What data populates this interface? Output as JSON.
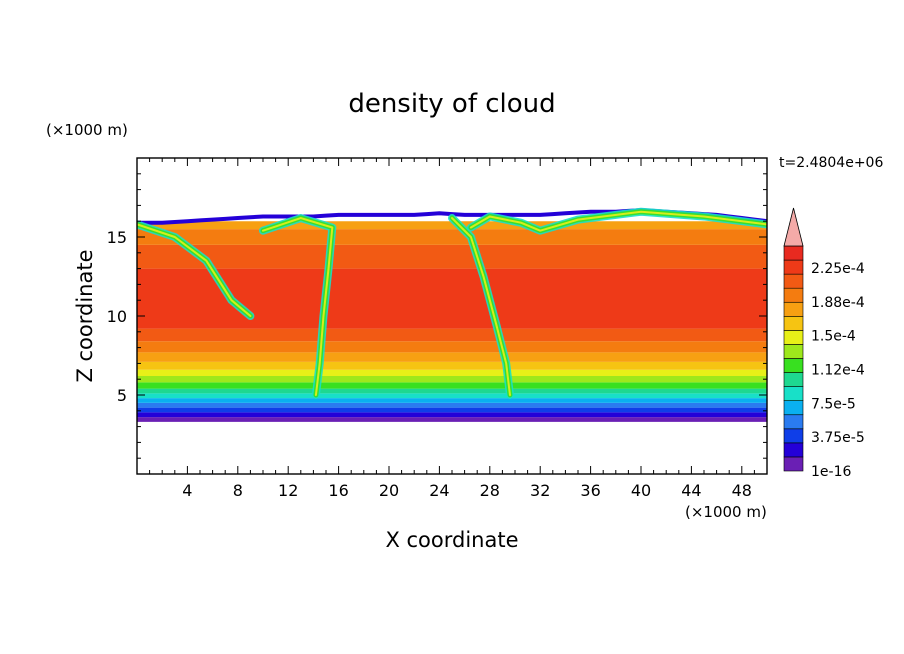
{
  "chart_data": {
    "type": "heatmap",
    "title": "density of cloud",
    "xlabel": "X coordinate",
    "ylabel": "Z coordinate",
    "x_unit": "(×1000 m)",
    "y_unit": "(×1000 m)",
    "time_label": "t=2.4804e+06",
    "xlim": [
      0,
      50
    ],
    "ylim": [
      0,
      20
    ],
    "x_ticks": [
      4,
      8,
      12,
      16,
      20,
      24,
      28,
      32,
      36,
      40,
      44,
      48
    ],
    "y_ticks": [
      5,
      10,
      15
    ],
    "colorbar": {
      "labels": [
        "2.25e-4",
        "1.88e-4",
        "1.5e-4",
        "1.12e-4",
        "7.5e-5",
        "3.75e-5",
        "1e-16"
      ],
      "colors": [
        "#6a1fb4",
        "#2400d8",
        "#0f3ee8",
        "#2a7bf0",
        "#0ab0f0",
        "#18e0c8",
        "#1ed890",
        "#38e020",
        "#9ee81c",
        "#e8f018",
        "#f6c412",
        "#f7a012",
        "#f47c10",
        "#f25a14",
        "#ee3a18",
        "#e82a20"
      ],
      "extend_color": "#f4aaa8"
    },
    "layers": [
      {
        "range_km": [
          3.3,
          3.6
        ],
        "color": "#6a1fb4"
      },
      {
        "range_km": [
          3.6,
          3.9
        ],
        "color": "#2400d8"
      },
      {
        "range_km": [
          3.9,
          4.2
        ],
        "color": "#0f3ee8"
      },
      {
        "range_km": [
          4.2,
          4.5
        ],
        "color": "#2a7bf0"
      },
      {
        "range_km": [
          4.5,
          4.8
        ],
        "color": "#0ab0f0"
      },
      {
        "range_km": [
          4.8,
          5.1
        ],
        "color": "#18e0c8"
      },
      {
        "range_km": [
          5.1,
          5.4
        ],
        "color": "#1ed890"
      },
      {
        "range_km": [
          5.4,
          5.8
        ],
        "color": "#38e020"
      },
      {
        "range_km": [
          5.8,
          6.2
        ],
        "color": "#9ee81c"
      },
      {
        "range_km": [
          6.2,
          6.6
        ],
        "color": "#e8f018"
      },
      {
        "range_km": [
          6.6,
          7.1
        ],
        "color": "#f6c412"
      },
      {
        "range_km": [
          7.1,
          7.7
        ],
        "color": "#f7a012"
      },
      {
        "range_km": [
          7.7,
          8.4
        ],
        "color": "#f47c10"
      },
      {
        "range_km": [
          8.4,
          9.2
        ],
        "color": "#f25a14"
      },
      {
        "range_km": [
          9.2,
          13.0
        ],
        "color": "#ee3a18"
      },
      {
        "range_km": [
          13.0,
          14.5
        ],
        "color": "#f25a14"
      },
      {
        "range_km": [
          14.5,
          15.5
        ],
        "color": "#f47c10"
      },
      {
        "range_km": [
          15.5,
          16.0
        ],
        "color": "#f7a012"
      }
    ],
    "cloud_base_km": 3.3,
    "cloud_top_km": [
      [
        0,
        15.9
      ],
      [
        2,
        15.9
      ],
      [
        4,
        16.0
      ],
      [
        6,
        16.1
      ],
      [
        8,
        16.2
      ],
      [
        10,
        16.3
      ],
      [
        12,
        16.3
      ],
      [
        14,
        16.3
      ],
      [
        16,
        16.4
      ],
      [
        18,
        16.4
      ],
      [
        20,
        16.4
      ],
      [
        22,
        16.4
      ],
      [
        24,
        16.5
      ],
      [
        26,
        16.4
      ],
      [
        28,
        16.4
      ],
      [
        30,
        16.4
      ],
      [
        32,
        16.4
      ],
      [
        34,
        16.5
      ],
      [
        36,
        16.6
      ],
      [
        38,
        16.6
      ],
      [
        40,
        16.7
      ],
      [
        42,
        16.6
      ],
      [
        44,
        16.5
      ],
      [
        46,
        16.4
      ],
      [
        48,
        16.2
      ],
      [
        50,
        16.0
      ]
    ],
    "filaments": [
      {
        "points": [
          [
            0,
            15.8
          ],
          [
            3,
            15.0
          ],
          [
            5.5,
            13.5
          ],
          [
            7.5,
            11.0
          ],
          [
            9,
            10.0
          ]
        ]
      },
      {
        "points": [
          [
            10,
            15.4
          ],
          [
            13,
            16.2
          ],
          [
            15.5,
            15.6
          ],
          [
            15.2,
            13.0
          ],
          [
            14.8,
            10.0
          ],
          [
            14.5,
            7.0
          ],
          [
            14.2,
            5.0
          ]
        ]
      },
      {
        "points": [
          [
            25,
            16.2
          ],
          [
            26.5,
            15.0
          ],
          [
            27.5,
            12.5
          ],
          [
            28.5,
            9.5
          ],
          [
            29.3,
            7.0
          ],
          [
            29.6,
            5.0
          ]
        ]
      },
      {
        "points": [
          [
            26.5,
            15.6
          ],
          [
            28,
            16.3
          ],
          [
            30.5,
            15.9
          ],
          [
            32,
            15.4
          ],
          [
            35,
            16.1
          ],
          [
            40,
            16.6
          ],
          [
            45,
            16.3
          ],
          [
            50,
            15.8
          ]
        ]
      }
    ]
  }
}
